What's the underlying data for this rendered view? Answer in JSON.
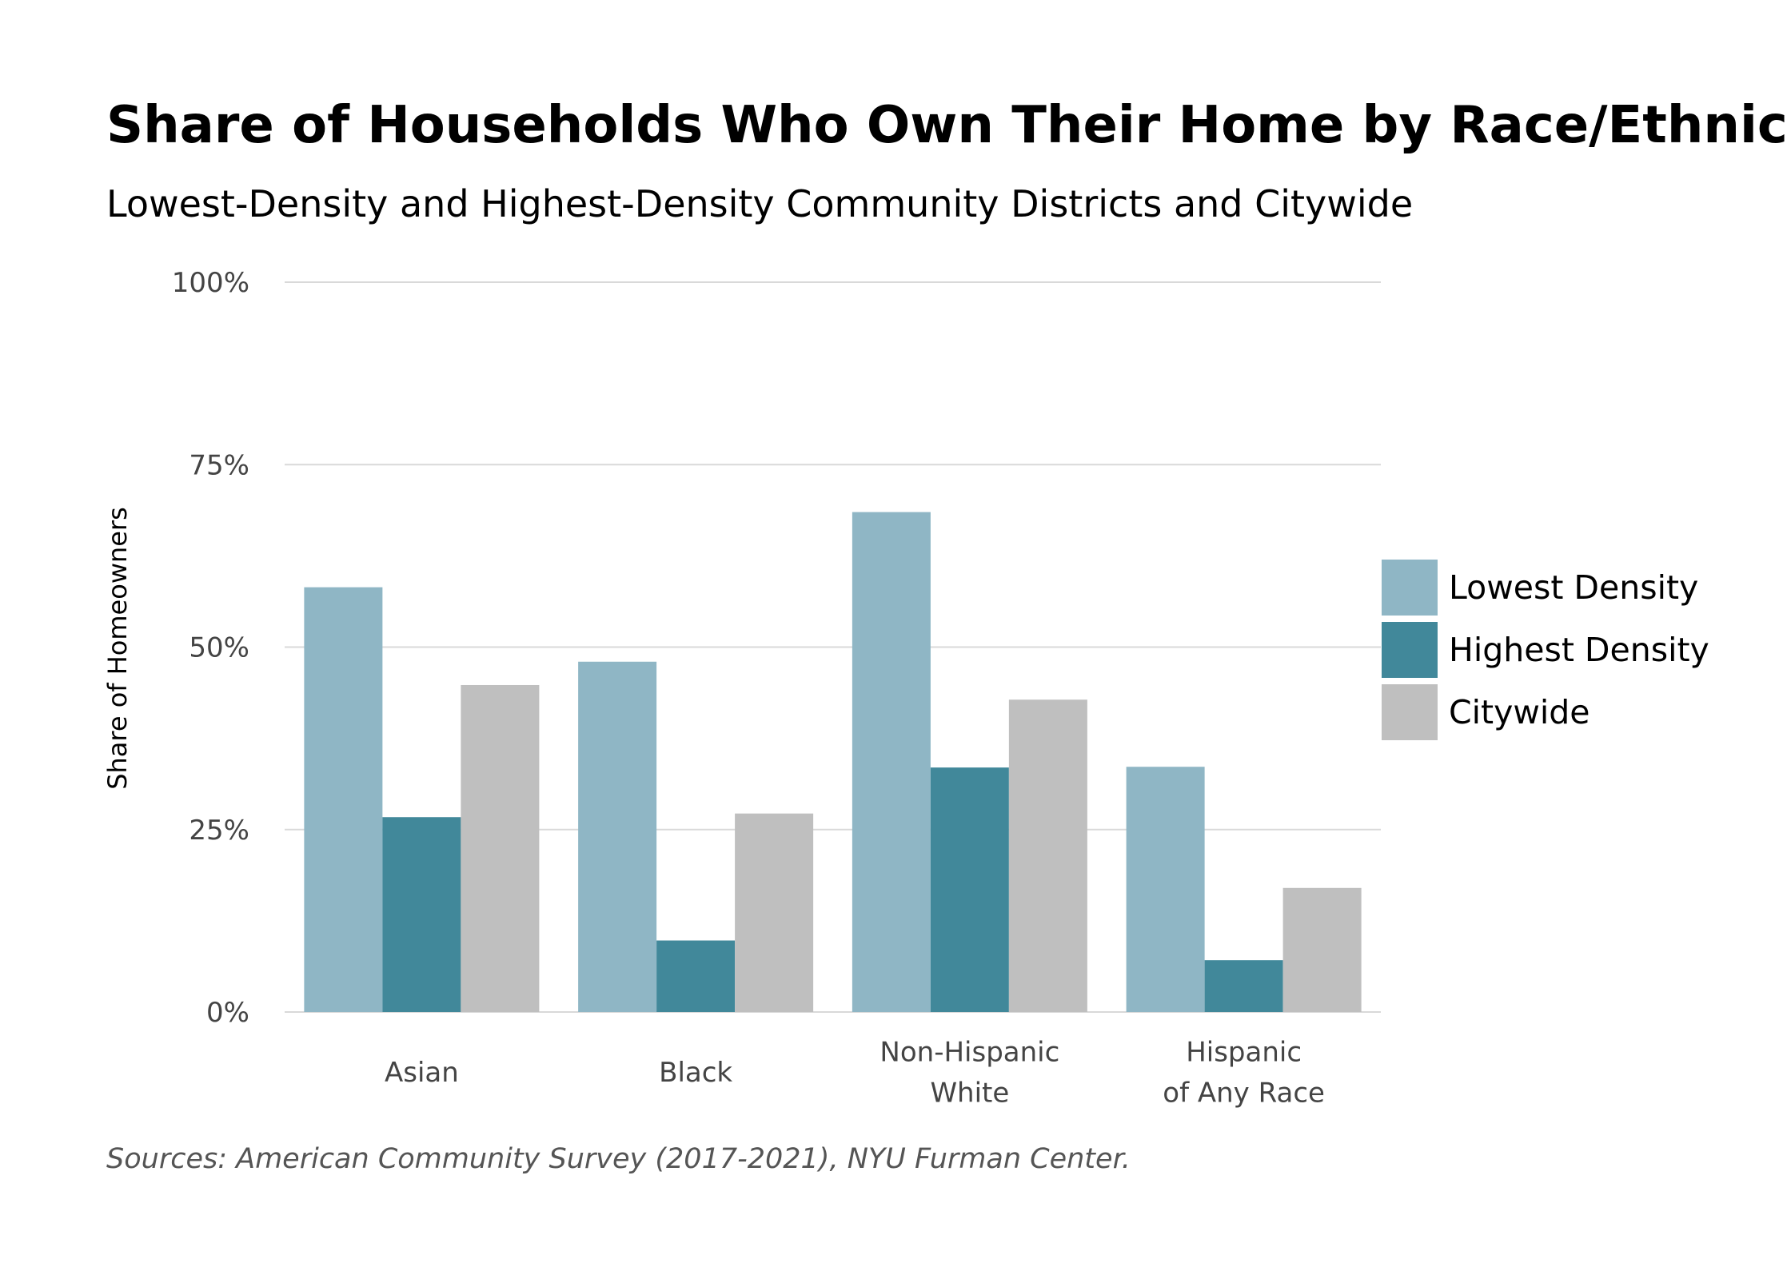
{
  "chart": {
    "title": "Share of Households Who Own Their Home by Race/Ethnicity",
    "subtitle": "Lowest-Density and Highest-Density Community Districts and Citywide",
    "source": "Sources: American Community Survey (2017-2021), NYU Furman Center."
  },
  "chart_data": {
    "type": "bar",
    "title": "Share of Households Who Own Their Home by Race/Ethnicity",
    "subtitle": "Lowest-Density and Highest-Density Community Districts and Citywide",
    "xlabel": "",
    "ylabel": "Share of Homeowners",
    "ylim": [
      0,
      100
    ],
    "y_ticks": [
      0,
      25,
      50,
      75,
      100
    ],
    "y_tick_labels": [
      "0%",
      "25%",
      "50%",
      "75%",
      "100%"
    ],
    "grid": true,
    "legend_position": "right",
    "categories": [
      [
        "Asian"
      ],
      [
        "Black"
      ],
      [
        "Non-Hispanic",
        "White"
      ],
      [
        "Hispanic",
        "of Any Race"
      ]
    ],
    "series": [
      {
        "name": "Lowest Density",
        "color": "#8fb6c5",
        "values": [
          58.2,
          48.0,
          68.5,
          33.6
        ]
      },
      {
        "name": "Highest Density",
        "color": "#41889a",
        "values": [
          26.7,
          9.8,
          33.5,
          7.1
        ]
      },
      {
        "name": "Citywide",
        "color": "#bfbfbf",
        "values": [
          44.8,
          27.2,
          42.8,
          17.0
        ]
      }
    ],
    "gridline_color": "#d9d9d9",
    "source": "Sources: American Community Survey (2017-2021), NYU Furman Center."
  }
}
